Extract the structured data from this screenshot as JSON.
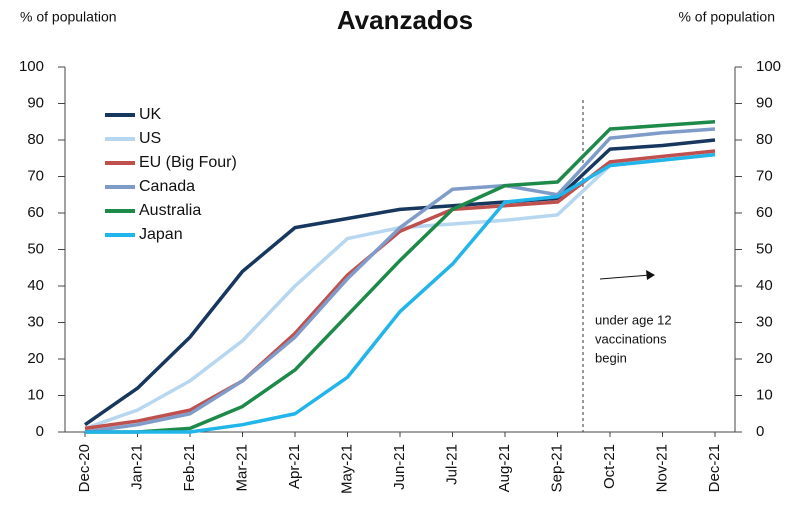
{
  "chart_data": {
    "type": "line",
    "title": "Avanzados",
    "y_label": "% of population",
    "y2_label": "% of population",
    "categories": [
      "Dec-20",
      "Jan-21",
      "Feb-21",
      "Mar-21",
      "Apr-21",
      "May-21",
      "Jun-21",
      "Jul-21",
      "Aug-21",
      "Sep-21",
      "Oct-21",
      "Nov-21",
      "Dec-21"
    ],
    "series": [
      {
        "name": "UK",
        "color": "#17375e",
        "values": [
          2,
          12,
          26,
          44,
          56,
          58.5,
          61,
          62,
          63,
          64,
          77.5,
          78.5,
          80
        ]
      },
      {
        "name": "US",
        "color": "#b7d7f0",
        "values": [
          1,
          6,
          14,
          25,
          40,
          53,
          56,
          57,
          58,
          59.5,
          73,
          74.5,
          76
        ]
      },
      {
        "name": "EU (Big Four)",
        "color": "#c0504d",
        "values": [
          1,
          3,
          6,
          14,
          27,
          43,
          55,
          61,
          62,
          63,
          74,
          75.5,
          77
        ]
      },
      {
        "name": "Canada",
        "color": "#7f9cc9",
        "values": [
          0,
          2,
          5,
          14,
          26,
          42,
          56,
          66.5,
          67.5,
          65,
          80.5,
          82,
          83
        ]
      },
      {
        "name": "Australia",
        "color": "#1e8a4a",
        "values": [
          0,
          0,
          1,
          7,
          17,
          32,
          47,
          61,
          67.5,
          68.5,
          83,
          84,
          85
        ]
      },
      {
        "name": "Japan",
        "color": "#22b5ea",
        "values": [
          0,
          0,
          0,
          2,
          5,
          15,
          33,
          46,
          63,
          64.5,
          73,
          74.5,
          76
        ]
      }
    ],
    "ylim": [
      0,
      100
    ],
    "yticks": [
      0,
      10,
      20,
      30,
      40,
      50,
      60,
      70,
      80,
      90,
      100
    ],
    "y2lim": [
      0,
      100
    ],
    "y2ticks": [
      0,
      10,
      20,
      30,
      40,
      50,
      60,
      70,
      80,
      90,
      100
    ],
    "annotation": [
      "under age 12",
      "vaccinations",
      "begin"
    ]
  }
}
